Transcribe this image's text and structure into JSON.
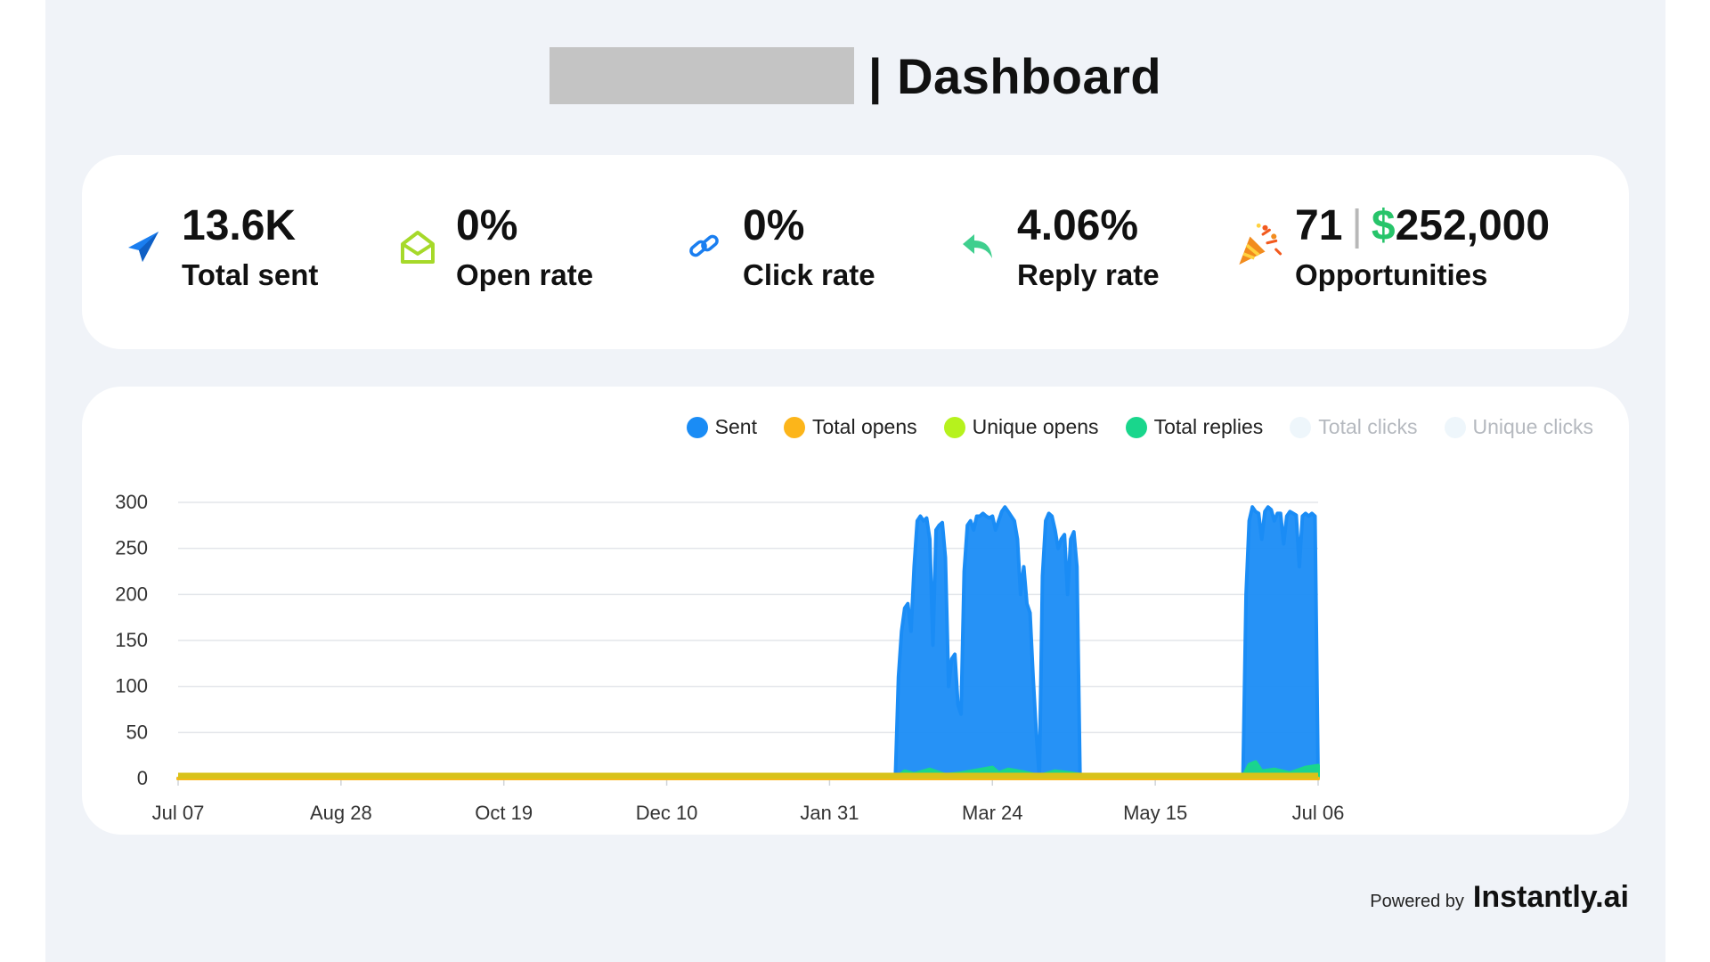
{
  "header": {
    "title": "| Dashboard"
  },
  "stats": {
    "sent": {
      "value": "13.6K",
      "label": "Total sent",
      "icon": "send-icon"
    },
    "open": {
      "value": "0%",
      "label": "Open rate",
      "icon": "envelope-open-icon"
    },
    "click": {
      "value": "0%",
      "label": "Click rate",
      "icon": "link-icon"
    },
    "reply": {
      "value": "4.06%",
      "label": "Reply rate",
      "icon": "reply-icon"
    },
    "opps": {
      "count": "71",
      "separator": "|",
      "currency": "$",
      "amount": "252,000",
      "label": "Opportunities",
      "icon": "party-popper-icon"
    }
  },
  "legend": [
    {
      "name": "Sent",
      "color": "#1a8cf5",
      "active": true
    },
    {
      "name": "Total opens",
      "color": "#fcb51a",
      "active": true
    },
    {
      "name": "Unique opens",
      "color": "#b6f21d",
      "active": true
    },
    {
      "name": "Total replies",
      "color": "#19d68c",
      "active": true
    },
    {
      "name": "Total clicks",
      "color": "#eef6fb",
      "active": false
    },
    {
      "name": "Unique clicks",
      "color": "#eef6fb",
      "active": false
    }
  ],
  "chart_data": {
    "type": "area",
    "x_ticks": [
      "Jul 07",
      "Aug 28",
      "Oct 19",
      "Dec 10",
      "Jan 31",
      "Mar 24",
      "May 15",
      "Jul 06"
    ],
    "y_ticks": [
      0,
      50,
      100,
      150,
      200,
      250,
      300
    ],
    "ylim": [
      0,
      300
    ],
    "xlim_days": [
      0,
      364
    ],
    "grid": true,
    "legend_position": "top-right",
    "series": [
      {
        "name": "Sent",
        "color": "#1a8cf5",
        "points": [
          [
            0,
            0
          ],
          [
            229,
            0
          ],
          [
            230,
            110
          ],
          [
            231,
            160
          ],
          [
            232,
            185
          ],
          [
            233,
            190
          ],
          [
            234,
            160
          ],
          [
            235,
            230
          ],
          [
            236,
            280
          ],
          [
            237,
            285
          ],
          [
            238,
            280
          ],
          [
            239,
            283
          ],
          [
            240,
            260
          ],
          [
            241,
            145
          ],
          [
            242,
            270
          ],
          [
            243,
            275
          ],
          [
            244,
            278
          ],
          [
            245,
            240
          ],
          [
            246,
            100
          ],
          [
            247,
            130
          ],
          [
            248,
            135
          ],
          [
            249,
            80
          ],
          [
            250,
            70
          ],
          [
            251,
            225
          ],
          [
            252,
            275
          ],
          [
            253,
            280
          ],
          [
            254,
            270
          ],
          [
            255,
            285
          ],
          [
            256,
            285
          ],
          [
            257,
            288
          ],
          [
            258,
            285
          ],
          [
            259,
            283
          ],
          [
            260,
            285
          ],
          [
            261,
            270
          ],
          [
            262,
            280
          ],
          [
            263,
            290
          ],
          [
            264,
            295
          ],
          [
            265,
            290
          ],
          [
            266,
            285
          ],
          [
            267,
            280
          ],
          [
            268,
            260
          ],
          [
            269,
            200
          ],
          [
            270,
            230
          ],
          [
            271,
            190
          ],
          [
            272,
            180
          ],
          [
            273,
            110
          ],
          [
            274,
            50
          ],
          [
            275,
            0
          ],
          [
            276,
            220
          ],
          [
            277,
            280
          ],
          [
            278,
            288
          ],
          [
            279,
            285
          ],
          [
            280,
            270
          ],
          [
            281,
            250
          ],
          [
            282,
            260
          ],
          [
            283,
            265
          ],
          [
            284,
            200
          ],
          [
            285,
            260
          ],
          [
            286,
            268
          ],
          [
            287,
            230
          ],
          [
            288,
            0
          ],
          [
            340,
            0
          ],
          [
            341,
            200
          ],
          [
            342,
            280
          ],
          [
            343,
            295
          ],
          [
            344,
            290
          ],
          [
            345,
            288
          ],
          [
            346,
            260
          ],
          [
            347,
            290
          ],
          [
            348,
            295
          ],
          [
            349,
            292
          ],
          [
            350,
            280
          ],
          [
            351,
            288
          ],
          [
            352,
            288
          ],
          [
            353,
            255
          ],
          [
            354,
            285
          ],
          [
            355,
            290
          ],
          [
            356,
            288
          ],
          [
            357,
            286
          ],
          [
            358,
            230
          ],
          [
            359,
            285
          ],
          [
            360,
            288
          ],
          [
            361,
            285
          ],
          [
            362,
            288
          ],
          [
            363,
            285
          ],
          [
            364,
            0
          ]
        ]
      },
      {
        "name": "Total replies",
        "color": "#19d68c",
        "points": [
          [
            0,
            0
          ],
          [
            229,
            0
          ],
          [
            232,
            8
          ],
          [
            235,
            5
          ],
          [
            240,
            10
          ],
          [
            245,
            4
          ],
          [
            250,
            6
          ],
          [
            255,
            9
          ],
          [
            260,
            12
          ],
          [
            262,
            6
          ],
          [
            265,
            10
          ],
          [
            270,
            7
          ],
          [
            275,
            3
          ],
          [
            280,
            8
          ],
          [
            285,
            6
          ],
          [
            290,
            3
          ],
          [
            295,
            1
          ],
          [
            310,
            0
          ],
          [
            330,
            0
          ],
          [
            340,
            2
          ],
          [
            342,
            15
          ],
          [
            344,
            18
          ],
          [
            346,
            8
          ],
          [
            350,
            10
          ],
          [
            355,
            6
          ],
          [
            360,
            12
          ],
          [
            364,
            14
          ]
        ]
      },
      {
        "name": "Unique opens",
        "color": "#b6f21d",
        "points": [
          [
            0,
            0
          ],
          [
            364,
            0
          ]
        ]
      },
      {
        "name": "Total opens",
        "color": "#fcb51a",
        "points": [
          [
            0,
            0
          ],
          [
            364,
            0
          ]
        ]
      }
    ]
  },
  "footer": {
    "powered": "Powered by",
    "brand": "Instantly.ai"
  }
}
